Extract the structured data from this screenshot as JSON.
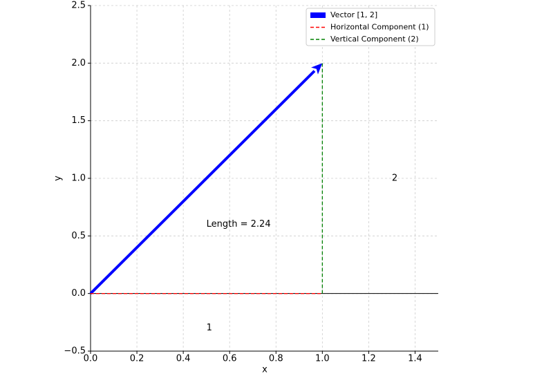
{
  "chart_data": {
    "type": "vector",
    "xlabel": "x",
    "ylabel": "y",
    "xlim": [
      0,
      1.5
    ],
    "ylim": [
      -0.5,
      2.5
    ],
    "xticks": [
      {
        "value": 0,
        "label": "0.0"
      },
      {
        "value": 0.2,
        "label": "0.2"
      },
      {
        "value": 0.4,
        "label": "0.4"
      },
      {
        "value": 0.6,
        "label": "0.6"
      },
      {
        "value": 0.8,
        "label": "0.8"
      },
      {
        "value": 1,
        "label": "1.0"
      },
      {
        "value": 1.2,
        "label": "1.2"
      },
      {
        "value": 1.4,
        "label": "1.4"
      }
    ],
    "yticks": [
      {
        "value": -0.5,
        "label": "−0.5"
      },
      {
        "value": 0,
        "label": "0.0"
      },
      {
        "value": 0.5,
        "label": "0.5"
      },
      {
        "value": 1,
        "label": "1.0"
      },
      {
        "value": 1.5,
        "label": "1.5"
      },
      {
        "value": 2,
        "label": "2.0"
      },
      {
        "value": 2.5,
        "label": "2.5"
      }
    ],
    "grid": true,
    "axhline": 0,
    "legend": "upper right",
    "series": [
      {
        "name": "Vector [1, 2]",
        "color": "#0000ff",
        "style": "arrow",
        "x": [
          0,
          1
        ],
        "values": [
          0,
          2
        ]
      },
      {
        "name": "Horizontal Component (1)",
        "color": "#ff0000",
        "style": "dashed",
        "x": [
          0,
          1
        ],
        "values": [
          0,
          0
        ]
      },
      {
        "name": "Vertical Component (2)",
        "color": "#008000",
        "style": "dashed",
        "x": [
          1,
          1
        ],
        "values": [
          0,
          2
        ]
      }
    ],
    "annotations": [
      {
        "text": "Length = 2.24",
        "x": 0.5,
        "y": 0.6,
        "color": "#0000ff"
      },
      {
        "text": "1",
        "x": 0.5,
        "y": -0.3,
        "color": "#ff0000"
      },
      {
        "text": "2",
        "x": 1.3,
        "y": 1,
        "color": "#008000"
      }
    ]
  }
}
